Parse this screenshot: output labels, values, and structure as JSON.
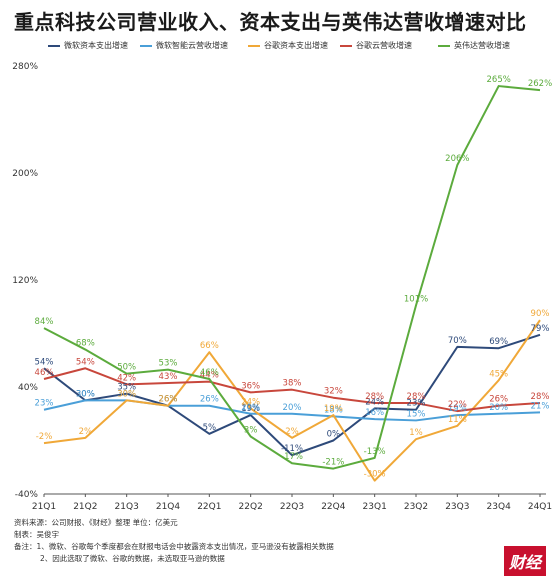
{
  "header": {
    "title": "重点科技公司营业收入、资本支出与英伟达营收增速对比"
  },
  "chart_data": {
    "type": "line",
    "categories": [
      "21Q1",
      "21Q2",
      "21Q3",
      "21Q4",
      "22Q1",
      "22Q2",
      "22Q3",
      "22Q4",
      "23Q1",
      "23Q2",
      "23Q3",
      "23Q4",
      "24Q1"
    ],
    "ylim": [
      -40,
      280
    ],
    "yticks": [
      -40,
      40,
      120,
      200,
      280
    ],
    "ytick_labels": [
      "-40%",
      "40%",
      "120%",
      "200%",
      "280%"
    ],
    "grid": false,
    "legend_position": "top",
    "series": [
      {
        "name": "微软资本支出增速",
        "color": "#2e4a7a",
        "values": [
          54,
          30,
          35,
          26,
          5,
          19,
          -11,
          0,
          24,
          23,
          70,
          69,
          79
        ],
        "labels": [
          "54%",
          "30%",
          "35%",
          "26%",
          "5%",
          "19%",
          "-11%",
          "0%",
          "24%",
          "23%",
          "70%",
          "69%",
          "79%"
        ]
      },
      {
        "name": "微软智能云营收增速",
        "color": "#4a9fd8",
        "values": [
          23,
          30,
          30,
          26,
          26,
          20,
          20,
          18,
          16,
          15,
          19,
          20,
          21
        ],
        "labels": [
          "23%",
          "30%",
          "30%",
          "26%",
          "26%",
          "20%",
          "20%",
          "18%",
          "16%",
          "15%",
          "19%",
          "20%",
          "21%"
        ]
      },
      {
        "name": "谷歌资本支出增速",
        "color": "#f0a838",
        "values": [
          -2,
          2,
          30,
          26,
          66,
          24,
          2,
          19,
          -30,
          1,
          11,
          45,
          90
        ],
        "labels": [
          "-2%",
          "2%",
          "30%",
          "26%",
          "66%",
          "24%",
          "2%",
          "19%",
          "-30%",
          "1%",
          "11%",
          "45%",
          "90%"
        ]
      },
      {
        "name": "谷歌云营收增速",
        "color": "#c8473c",
        "values": [
          46,
          54,
          42,
          43,
          44,
          36,
          38,
          32,
          28,
          28,
          22,
          26,
          28
        ],
        "labels": [
          "46%",
          "54%",
          "42%",
          "43%",
          "44%",
          "36%",
          "38%",
          "32%",
          "28%",
          "28%",
          "22%",
          "26%",
          "28%"
        ]
      },
      {
        "name": "英伟达营收增速",
        "color": "#5cab3d",
        "values": [
          84,
          68,
          50,
          53,
          46,
          3,
          -17,
          -21,
          -13,
          101,
          206,
          265,
          262
        ],
        "labels": [
          "84%",
          "68%",
          "50%",
          "53%",
          "46%",
          "3%",
          "-17%",
          "-21%",
          "-13%",
          "101%",
          "206%",
          "265%",
          "262%"
        ]
      }
    ]
  },
  "footer": {
    "source": "资料来源：公司财报、《财经》整理        单位：亿美元",
    "author": "制表：吴俊宇",
    "note1": "备注：1、微软、谷歌每个季度都会在财报电话会中披露资本支出情况，亚马逊没有披露相关数据",
    "note2": "2、因此选取了微软、谷歌的数据，未选取亚马逊的数据"
  },
  "logo": {
    "text": "财经"
  }
}
